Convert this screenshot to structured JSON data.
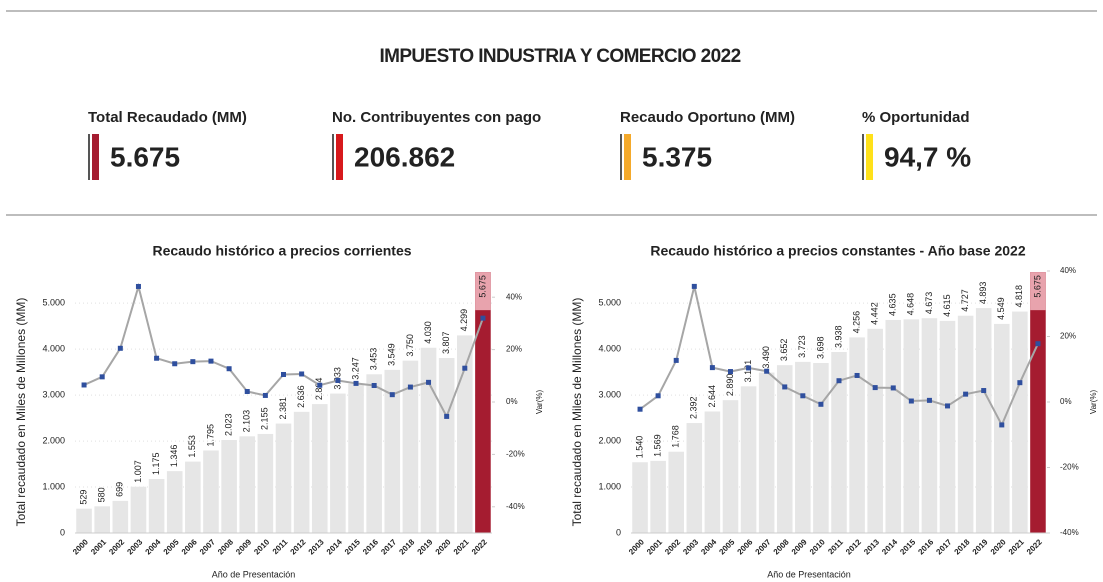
{
  "header": {
    "title": "IMPUESTO INDUSTRIA Y COMERCIO 2022"
  },
  "kpis": [
    {
      "label": "Total Recaudado (MM)",
      "value": "5.675",
      "color": "#a51c30",
      "label_color": "#a51c30"
    },
    {
      "label": "No. Contribuyentes con pago",
      "value": "206.862",
      "color": "#d7191c",
      "label_color": "#222222"
    },
    {
      "label": "Recaudo Oportuno (MM)",
      "value": "5.375",
      "color": "#f4a92b",
      "label_color": "#222222"
    },
    {
      "label": "% Oportunidad",
      "value": "94,7 %",
      "color": "#ffe11a",
      "label_color": "#222222"
    }
  ],
  "chart_data": [
    {
      "type": "bar",
      "title": "Recaudo histórico a precios corrientes",
      "x_label": "Año de Presentación",
      "y_label": "Total recaudado en Miles de Millones (MM)",
      "y2_label": "Var(%)",
      "categories": [
        "2000",
        "2001",
        "2002",
        "2003",
        "2004",
        "2005",
        "2006",
        "2007",
        "2008",
        "2009",
        "2010",
        "2011",
        "2012",
        "2013",
        "2014",
        "2015",
        "2016",
        "2017",
        "2018",
        "2019",
        "2020",
        "2021",
        "2022"
      ],
      "series": [
        {
          "type": "bar",
          "color": "#e6e6e6",
          "colors": [
            "#e6e6e6",
            "#e6e6e6",
            "#e6e6e6",
            "#e6e6e6",
            "#e6e6e6",
            "#e6e6e6",
            "#e6e6e6",
            "#e6e6e6",
            "#e6e6e6",
            "#e6e6e6",
            "#e6e6e6",
            "#e6e6e6",
            "#e6e6e6",
            "#e6e6e6",
            "#e6e6e6",
            "#e6e6e6",
            "#e6e6e6",
            "#e6e6e6",
            "#e6e6e6",
            "#e6e6e6",
            "#e6e6e6",
            "#e6e6e6",
            "#a51c30"
          ],
          "values": [
            529,
            580,
            699,
            1007,
            1175,
            1346,
            1553,
            1795,
            2023,
            2103,
            2155,
            2381,
            2636,
            2804,
            3033,
            3247,
            3453,
            3549,
            3750,
            4030,
            3807,
            4299,
            5675
          ],
          "value_labels": [
            "529",
            "580",
            "699",
            "1.007",
            "1.175",
            "1.346",
            "1.553",
            "1.795",
            "2.023",
            "2.103",
            "2.155",
            "2.381",
            "2.636",
            "2.804",
            "3.033",
            "3.247",
            "3.453",
            "3.549",
            "3.750",
            "4.030",
            "3.807",
            "4.299",
            "5.675"
          ]
        },
        {
          "type": "line",
          "axis": "y2",
          "color": "#a6a6a6",
          "marker_color": "#2f4f9e",
          "values": [
            6.5,
            9.6,
            20.5,
            44.1,
            16.7,
            14.6,
            15.4,
            15.6,
            12.7,
            4.0,
            2.5,
            10.5,
            10.7,
            6.4,
            8.2,
            7.1,
            6.3,
            2.8,
            5.7,
            7.5,
            -5.5,
            12.9,
            32.0
          ]
        }
      ],
      "ylim": [
        0,
        5700
      ],
      "yticks": [
        0,
        {
          "value": 1000,
          "label": "1.000"
        },
        {
          "value": 2000,
          "label": "2.000"
        },
        {
          "value": 3000,
          "label": "3.000"
        },
        {
          "value": 4000,
          "label": "4.000"
        },
        {
          "value": 5000,
          "label": "5.000"
        }
      ],
      "y2lim": [
        -50,
        50
      ],
      "y2ticks": [
        {
          "value": -40,
          "label": "-40%"
        },
        {
          "value": -20,
          "label": "-20%"
        },
        {
          "value": 0,
          "label": "0%"
        },
        {
          "value": 20,
          "label": "20%"
        },
        {
          "value": 40,
          "label": "40%"
        }
      ],
      "grid": true
    },
    {
      "type": "bar",
      "title": "Recaudo histórico a precios constantes - Año base 2022",
      "x_label": "Año de Presentación",
      "y_label": "Total recaudado en Miles de Millones (MM)",
      "y2_label": "Var(%)",
      "categories": [
        "2000",
        "2001",
        "2002",
        "2003",
        "2004",
        "2005",
        "2006",
        "2007",
        "2008",
        "2009",
        "2010",
        "2011",
        "2012",
        "2013",
        "2014",
        "2015",
        "2016",
        "2017",
        "2018",
        "2019",
        "2020",
        "2021",
        "2022"
      ],
      "series": [
        {
          "type": "bar",
          "color": "#e6e6e6",
          "colors": [
            "#e6e6e6",
            "#e6e6e6",
            "#e6e6e6",
            "#e6e6e6",
            "#e6e6e6",
            "#e6e6e6",
            "#e6e6e6",
            "#e6e6e6",
            "#e6e6e6",
            "#e6e6e6",
            "#e6e6e6",
            "#e6e6e6",
            "#e6e6e6",
            "#e6e6e6",
            "#e6e6e6",
            "#e6e6e6",
            "#e6e6e6",
            "#e6e6e6",
            "#e6e6e6",
            "#e6e6e6",
            "#e6e6e6",
            "#e6e6e6",
            "#a51c30"
          ],
          "values": [
            1540,
            1569,
            1768,
            2392,
            2644,
            2890,
            3191,
            3490,
            3652,
            3723,
            3698,
            3938,
            4256,
            4442,
            4635,
            4648,
            4673,
            4615,
            4727,
            4893,
            4549,
            4818,
            5675
          ],
          "value_labels": [
            "1.540",
            "1.569",
            "1.768",
            "2.392",
            "2.644",
            "2.890",
            "3.191",
            "3.490",
            "3.652",
            "3.723",
            "3.698",
            "3.938",
            "4.256",
            "4.442",
            "4.635",
            "4.648",
            "4.673",
            "4.615",
            "4.727",
            "4.893",
            "4.549",
            "4.818",
            "5.675"
          ]
        },
        {
          "type": "line",
          "axis": "y2",
          "color": "#a6a6a6",
          "marker_color": "#2f4f9e",
          "values": [
            -2.2,
            1.9,
            12.7,
            35.3,
            10.5,
            9.3,
            10.4,
            9.4,
            4.6,
            1.9,
            -0.7,
            6.5,
            8.1,
            4.4,
            4.3,
            0.3,
            0.5,
            -1.2,
            2.4,
            3.5,
            -7.0,
            5.9,
            17.8
          ]
        }
      ],
      "ylim": [
        0,
        5700
      ],
      "yticks": [
        0,
        {
          "value": 1000,
          "label": "1.000"
        },
        {
          "value": 2000,
          "label": "2.000"
        },
        {
          "value": 3000,
          "label": "3.000"
        },
        {
          "value": 4000,
          "label": "4.000"
        },
        {
          "value": 5000,
          "label": "5.000"
        }
      ],
      "y2lim": [
        -40,
        40
      ],
      "y2ticks": [
        {
          "value": -40,
          "label": "-40%"
        },
        {
          "value": -20,
          "label": "-20%"
        },
        {
          "value": 0,
          "label": "0%"
        },
        {
          "value": 20,
          "label": "20%"
        },
        {
          "value": 40,
          "label": "40%"
        }
      ],
      "grid": true
    }
  ]
}
